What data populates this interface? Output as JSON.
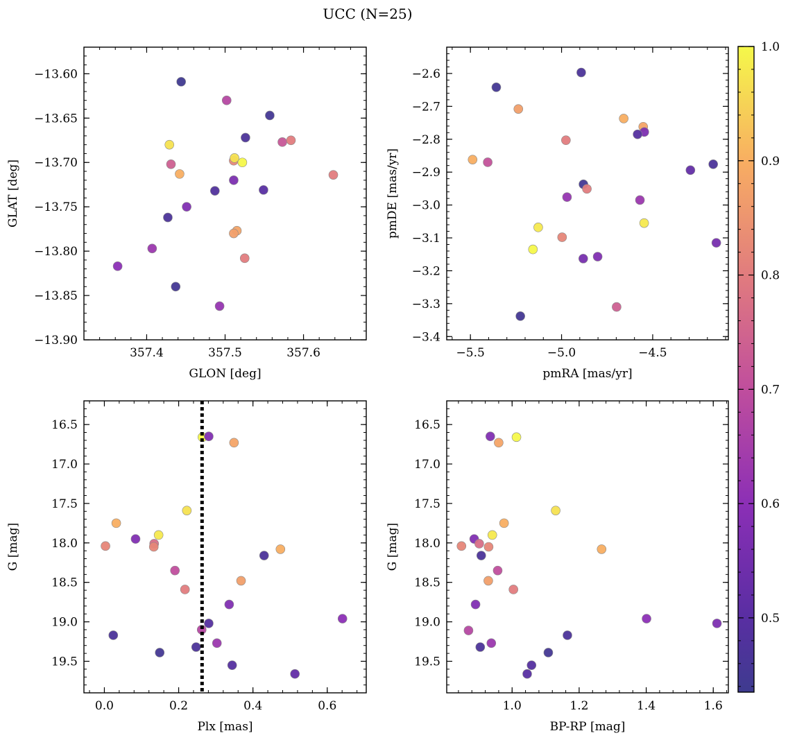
{
  "title": "UCC (N=25)",
  "colorbar": {
    "min": 0.435,
    "max": 1.0,
    "ticks": [
      0.5,
      0.6,
      0.7,
      0.8,
      0.9,
      1.0
    ],
    "tick_labels": [
      "0.5",
      "0.6",
      "0.7",
      "0.8",
      "0.9",
      "1.0"
    ],
    "colormap": "plasma"
  },
  "chart_data": [
    {
      "id": "glon-glat",
      "type": "scatter",
      "xlabel": "GLON [deg]",
      "ylabel": "GLAT [deg]",
      "xlim": [
        357.32,
        357.68
      ],
      "ylim": [
        -13.9,
        -13.57
      ],
      "xticks": [
        357.4,
        357.5,
        357.6
      ],
      "xtick_labels": [
        "357.4",
        "357.5",
        "357.6"
      ],
      "yticks": [
        -13.6,
        -13.65,
        -13.7,
        -13.75,
        -13.8,
        -13.85,
        -13.9
      ],
      "ytick_labels": [
        "−13.60",
        "−13.65",
        "−13.70",
        "−13.75",
        "−13.80",
        "−13.85",
        "−13.90"
      ],
      "x_minor_step": 0.02,
      "y_minor_step": 0.01,
      "points": [
        {
          "x": 357.444,
          "y": -13.609,
          "c": 0.44
        },
        {
          "x": 357.502,
          "y": -13.63,
          "c": 0.68
        },
        {
          "x": 357.557,
          "y": -13.647,
          "c": 0.45
        },
        {
          "x": 357.526,
          "y": -13.672,
          "c": 0.47
        },
        {
          "x": 357.429,
          "y": -13.68,
          "c": 0.97
        },
        {
          "x": 357.573,
          "y": -13.677,
          "c": 0.72
        },
        {
          "x": 357.584,
          "y": -13.675,
          "c": 0.8
        },
        {
          "x": 357.431,
          "y": -13.702,
          "c": 0.74
        },
        {
          "x": 357.511,
          "y": -13.698,
          "c": 0.82
        },
        {
          "x": 357.522,
          "y": -13.7,
          "c": 1.0
        },
        {
          "x": 357.512,
          "y": -13.695,
          "c": 0.97
        },
        {
          "x": 357.442,
          "y": -13.713,
          "c": 0.9
        },
        {
          "x": 357.638,
          "y": -13.714,
          "c": 0.8
        },
        {
          "x": 357.511,
          "y": -13.72,
          "c": 0.57
        },
        {
          "x": 357.487,
          "y": -13.732,
          "c": 0.48
        },
        {
          "x": 357.549,
          "y": -13.731,
          "c": 0.5
        },
        {
          "x": 357.451,
          "y": -13.75,
          "c": 0.58
        },
        {
          "x": 357.427,
          "y": -13.762,
          "c": 0.47
        },
        {
          "x": 357.515,
          "y": -13.777,
          "c": 0.88
        },
        {
          "x": 357.511,
          "y": -13.78,
          "c": 0.87
        },
        {
          "x": 357.407,
          "y": -13.797,
          "c": 0.63
        },
        {
          "x": 357.525,
          "y": -13.808,
          "c": 0.8
        },
        {
          "x": 357.363,
          "y": -13.817,
          "c": 0.6
        },
        {
          "x": 357.437,
          "y": -13.84,
          "c": 0.45
        },
        {
          "x": 357.493,
          "y": -13.862,
          "c": 0.62
        }
      ]
    },
    {
      "id": "pmra-pmde",
      "type": "scatter",
      "xlabel": "pmRA [mas/yr]",
      "ylabel": "pmDE [mas/yr]",
      "xlim": [
        -5.63,
        -4.085
      ],
      "ylim": [
        -3.41,
        -2.52
      ],
      "xticks": [
        -5.5,
        -5.0,
        -4.5
      ],
      "xtick_labels": [
        "−5.5",
        "−5.0",
        "−4.5"
      ],
      "yticks": [
        -2.6,
        -2.7,
        -2.8,
        -2.9,
        -3.0,
        -3.1,
        -3.2,
        -3.3,
        -3.4
      ],
      "ytick_labels": [
        "−2.6",
        "−2.7",
        "−2.8",
        "−2.9",
        "−3.0",
        "−3.1",
        "−3.2",
        "−3.3",
        "−3.4"
      ],
      "x_minor_step": 0.1,
      "y_minor_step": 0.02,
      "points": [
        {
          "x": -4.892,
          "y": -2.597,
          "c": 0.47
        },
        {
          "x": -5.358,
          "y": -2.642,
          "c": 0.45
        },
        {
          "x": -5.237,
          "y": -2.708,
          "c": 0.87
        },
        {
          "x": -4.659,
          "y": -2.737,
          "c": 0.9
        },
        {
          "x": -4.552,
          "y": -2.762,
          "c": 0.88
        },
        {
          "x": -4.546,
          "y": -2.778,
          "c": 0.57
        },
        {
          "x": -4.583,
          "y": -2.785,
          "c": 0.49
        },
        {
          "x": -4.976,
          "y": -2.803,
          "c": 0.8
        },
        {
          "x": -5.488,
          "y": -2.862,
          "c": 0.9
        },
        {
          "x": -5.405,
          "y": -2.87,
          "c": 0.71
        },
        {
          "x": -4.168,
          "y": -2.876,
          "c": 0.47
        },
        {
          "x": -4.293,
          "y": -2.894,
          "c": 0.52
        },
        {
          "x": -4.88,
          "y": -2.937,
          "c": 0.45
        },
        {
          "x": -4.861,
          "y": -2.951,
          "c": 0.8
        },
        {
          "x": -4.97,
          "y": -2.976,
          "c": 0.62
        },
        {
          "x": -4.57,
          "y": -2.985,
          "c": 0.63
        },
        {
          "x": -4.547,
          "y": -3.055,
          "c": 0.98
        },
        {
          "x": -5.128,
          "y": -3.068,
          "c": 0.98
        },
        {
          "x": -4.997,
          "y": -3.098,
          "c": 0.82
        },
        {
          "x": -4.151,
          "y": -3.115,
          "c": 0.56
        },
        {
          "x": -5.157,
          "y": -3.135,
          "c": 1.0
        },
        {
          "x": -4.802,
          "y": -3.157,
          "c": 0.58
        },
        {
          "x": -4.881,
          "y": -3.163,
          "c": 0.56
        },
        {
          "x": -4.698,
          "y": -3.31,
          "c": 0.74
        },
        {
          "x": -5.226,
          "y": -3.338,
          "c": 0.45
        }
      ]
    },
    {
      "id": "plx-g",
      "type": "scatter",
      "xlabel": "Plx [mas]",
      "ylabel": "G [mag]",
      "xlim": [
        -0.055,
        0.705
      ],
      "ylim": [
        19.9,
        16.2
      ],
      "y_inverted": true,
      "xticks": [
        0.0,
        0.2,
        0.4,
        0.6
      ],
      "xtick_labels": [
        "0.0",
        "0.2",
        "0.4",
        "0.6"
      ],
      "yticks": [
        16.5,
        17.0,
        17.5,
        18.0,
        18.5,
        19.0,
        19.5
      ],
      "ytick_labels": [
        "16.5",
        "17.0",
        "17.5",
        "18.0",
        "18.5",
        "19.0",
        "19.5"
      ],
      "x_minor_step": 0.04,
      "y_minor_step": 0.1,
      "vline": {
        "x": 0.263,
        "style": "dotted"
      },
      "points": [
        {
          "x": 0.264,
          "y": 16.66,
          "c": 1.0
        },
        {
          "x": 0.281,
          "y": 16.65,
          "c": 0.58
        },
        {
          "x": 0.349,
          "y": 16.73,
          "c": 0.88
        },
        {
          "x": 0.222,
          "y": 17.59,
          "c": 0.97
        },
        {
          "x": 0.032,
          "y": 17.75,
          "c": 0.9
        },
        {
          "x": 0.146,
          "y": 17.9,
          "c": 0.98
        },
        {
          "x": 0.084,
          "y": 17.95,
          "c": 0.58
        },
        {
          "x": 0.003,
          "y": 18.04,
          "c": 0.82
        },
        {
          "x": 0.134,
          "y": 18.01,
          "c": 0.77
        },
        {
          "x": 0.133,
          "y": 18.05,
          "c": 0.82
        },
        {
          "x": 0.474,
          "y": 18.08,
          "c": 0.9
        },
        {
          "x": 0.43,
          "y": 18.16,
          "c": 0.47
        },
        {
          "x": 0.19,
          "y": 18.35,
          "c": 0.7
        },
        {
          "x": 0.368,
          "y": 18.48,
          "c": 0.87
        },
        {
          "x": 0.217,
          "y": 18.59,
          "c": 0.8
        },
        {
          "x": 0.336,
          "y": 18.78,
          "c": 0.58
        },
        {
          "x": 0.641,
          "y": 18.96,
          "c": 0.6
        },
        {
          "x": 0.281,
          "y": 19.02,
          "c": 0.49
        },
        {
          "x": 0.262,
          "y": 19.1,
          "c": 0.68
        },
        {
          "x": 0.024,
          "y": 19.17,
          "c": 0.47
        },
        {
          "x": 0.303,
          "y": 19.27,
          "c": 0.63
        },
        {
          "x": 0.247,
          "y": 19.32,
          "c": 0.47
        },
        {
          "x": 0.149,
          "y": 19.39,
          "c": 0.45
        },
        {
          "x": 0.344,
          "y": 19.55,
          "c": 0.49
        },
        {
          "x": 0.513,
          "y": 19.66,
          "c": 0.52
        }
      ]
    },
    {
      "id": "bprp-g",
      "type": "scatter",
      "xlabel": "BP-RP [mag]",
      "ylabel": "G [mag]",
      "xlim": [
        0.805,
        1.645
      ],
      "ylim": [
        19.9,
        16.2
      ],
      "y_inverted": true,
      "xticks": [
        1.0,
        1.2,
        1.4,
        1.6
      ],
      "xtick_labels": [
        "1.0",
        "1.2",
        "1.4",
        "1.6"
      ],
      "yticks": [
        16.5,
        17.0,
        17.5,
        18.0,
        18.5,
        19.0,
        19.5
      ],
      "ytick_labels": [
        "16.5",
        "17.0",
        "17.5",
        "18.0",
        "18.5",
        "19.0",
        "19.5"
      ],
      "x_minor_step": 0.04,
      "y_minor_step": 0.1,
      "points": [
        {
          "x": 0.935,
          "y": 16.65,
          "c": 0.58
        },
        {
          "x": 1.013,
          "y": 16.66,
          "c": 1.0
        },
        {
          "x": 0.96,
          "y": 16.73,
          "c": 0.88
        },
        {
          "x": 1.13,
          "y": 17.59,
          "c": 0.97
        },
        {
          "x": 0.976,
          "y": 17.75,
          "c": 0.9
        },
        {
          "x": 0.941,
          "y": 17.9,
          "c": 0.98
        },
        {
          "x": 0.887,
          "y": 17.95,
          "c": 0.58
        },
        {
          "x": 0.902,
          "y": 18.01,
          "c": 0.77
        },
        {
          "x": 0.849,
          "y": 18.04,
          "c": 0.82
        },
        {
          "x": 0.93,
          "y": 18.05,
          "c": 0.82
        },
        {
          "x": 1.267,
          "y": 18.08,
          "c": 0.9
        },
        {
          "x": 0.908,
          "y": 18.16,
          "c": 0.47
        },
        {
          "x": 0.957,
          "y": 18.35,
          "c": 0.7
        },
        {
          "x": 0.929,
          "y": 18.48,
          "c": 0.87
        },
        {
          "x": 1.004,
          "y": 18.59,
          "c": 0.8
        },
        {
          "x": 0.891,
          "y": 18.78,
          "c": 0.58
        },
        {
          "x": 1.401,
          "y": 18.96,
          "c": 0.6
        },
        {
          "x": 1.611,
          "y": 19.02,
          "c": 0.57
        },
        {
          "x": 0.87,
          "y": 19.11,
          "c": 0.68
        },
        {
          "x": 1.165,
          "y": 19.17,
          "c": 0.47
        },
        {
          "x": 0.938,
          "y": 19.27,
          "c": 0.63
        },
        {
          "x": 0.905,
          "y": 19.32,
          "c": 0.47
        },
        {
          "x": 1.108,
          "y": 19.39,
          "c": 0.45
        },
        {
          "x": 1.058,
          "y": 19.55,
          "c": 0.49
        },
        {
          "x": 1.045,
          "y": 19.66,
          "c": 0.5
        }
      ]
    }
  ]
}
